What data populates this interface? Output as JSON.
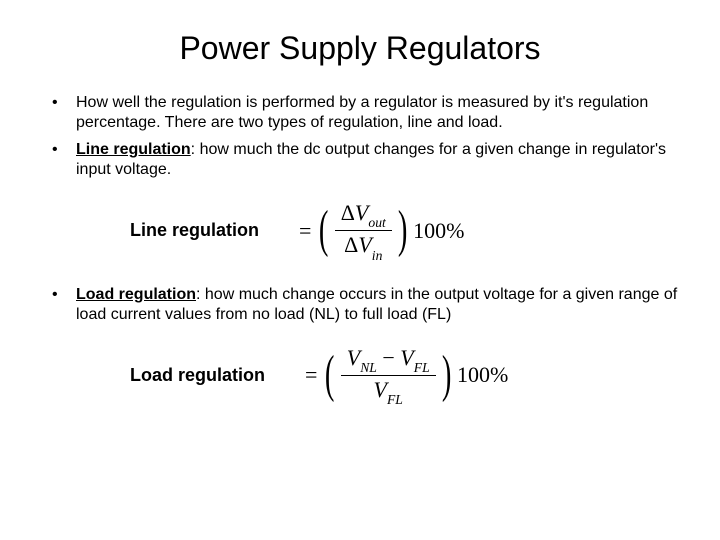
{
  "title": "Power Supply Regulators",
  "bullets": {
    "b1": "How well the regulation is performed by a regulator is measured by it's regulation percentage. There are two types of regulation, line and load.",
    "b2_term": "Line regulation",
    "b2_rest": ": how much the dc output changes for a given change in regulator's input voltage.",
    "b3_term": "Load regulation",
    "b3_rest": ": how much change occurs in the output voltage for a given range of load current values from no load (NL) to full load (FL)"
  },
  "formula1": {
    "label": "Line regulation",
    "eq": "=",
    "num_delta": "Δ",
    "num_v": "V",
    "num_sub": "out",
    "den_delta": "Δ",
    "den_v": "V",
    "den_sub": "in",
    "tail": "100%"
  },
  "formula2": {
    "label": "Load regulation",
    "eq": "=",
    "n_v1": "V",
    "n_s1": "NL",
    "n_minus": " − ",
    "n_v2": "V",
    "n_s2": "FL",
    "d_v": "V",
    "d_s": "FL",
    "tail": "100%"
  },
  "colors": {
    "text": "#000000",
    "background": "#ffffff"
  }
}
